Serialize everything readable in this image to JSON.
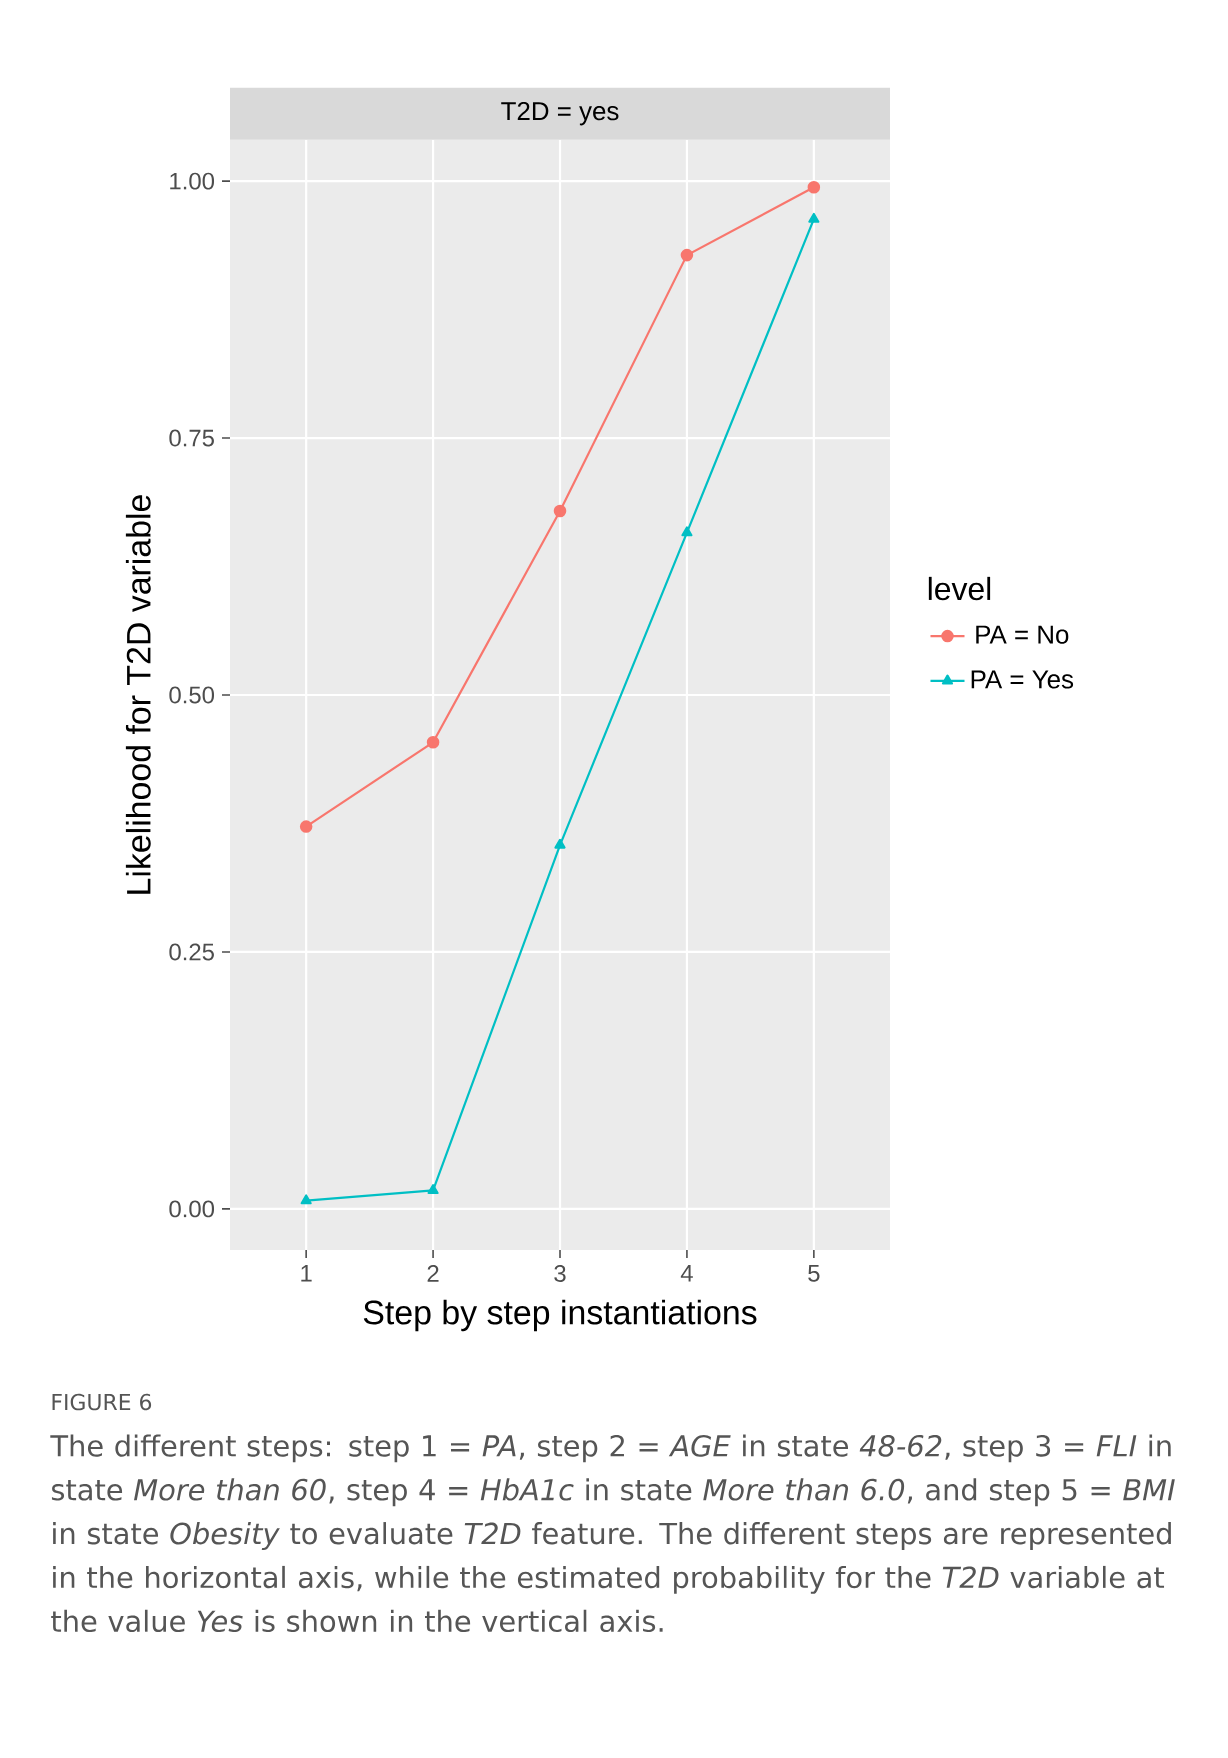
{
  "chart_data": {
    "type": "line",
    "title": "T2D = yes",
    "xlabel": "Step by step instantiations",
    "ylabel": "Likelihood for T2D variable",
    "legend_title": "level",
    "categories": [
      "1",
      "2",
      "3",
      "4",
      "5"
    ],
    "series": [
      {
        "name": "PA = No",
        "color": "#f8766d",
        "marker": "circle",
        "values": [
          0.372,
          0.454,
          0.679,
          0.928,
          0.994
        ]
      },
      {
        "name": "PA = Yes",
        "color": "#00bfc4",
        "marker": "triangle",
        "values": [
          0.008,
          0.018,
          0.354,
          0.658,
          0.963
        ]
      }
    ],
    "ylim": [
      -0.04,
      1.04
    ],
    "yticks": [
      {
        "value": 0,
        "label": "0.00"
      },
      {
        "value": 0.25,
        "label": "0.25"
      },
      {
        "value": 0.5,
        "label": "0.50"
      },
      {
        "value": 0.75,
        "label": "0.75"
      },
      {
        "value": 1,
        "label": "1.00"
      }
    ],
    "grid": true,
    "legend": "right",
    "line_style": "solid",
    "annotations": [
      "FIGURE 6",
      "The different steps: step 1 = *PA*, step 2 = *AGE* in state *48-62*, step 3 = *FLI* in state *More than 60*, step 4 = *HbA1c* in state *More than 6.0*, and step 5 = *BMI* in state *Obesity* to evaluate *T2D* feature. The different steps are represented in the horizontal axis, while the estimated probability for the *T2D* variable at the value *Yes* is shown in the vertical axis."
    ]
  }
}
